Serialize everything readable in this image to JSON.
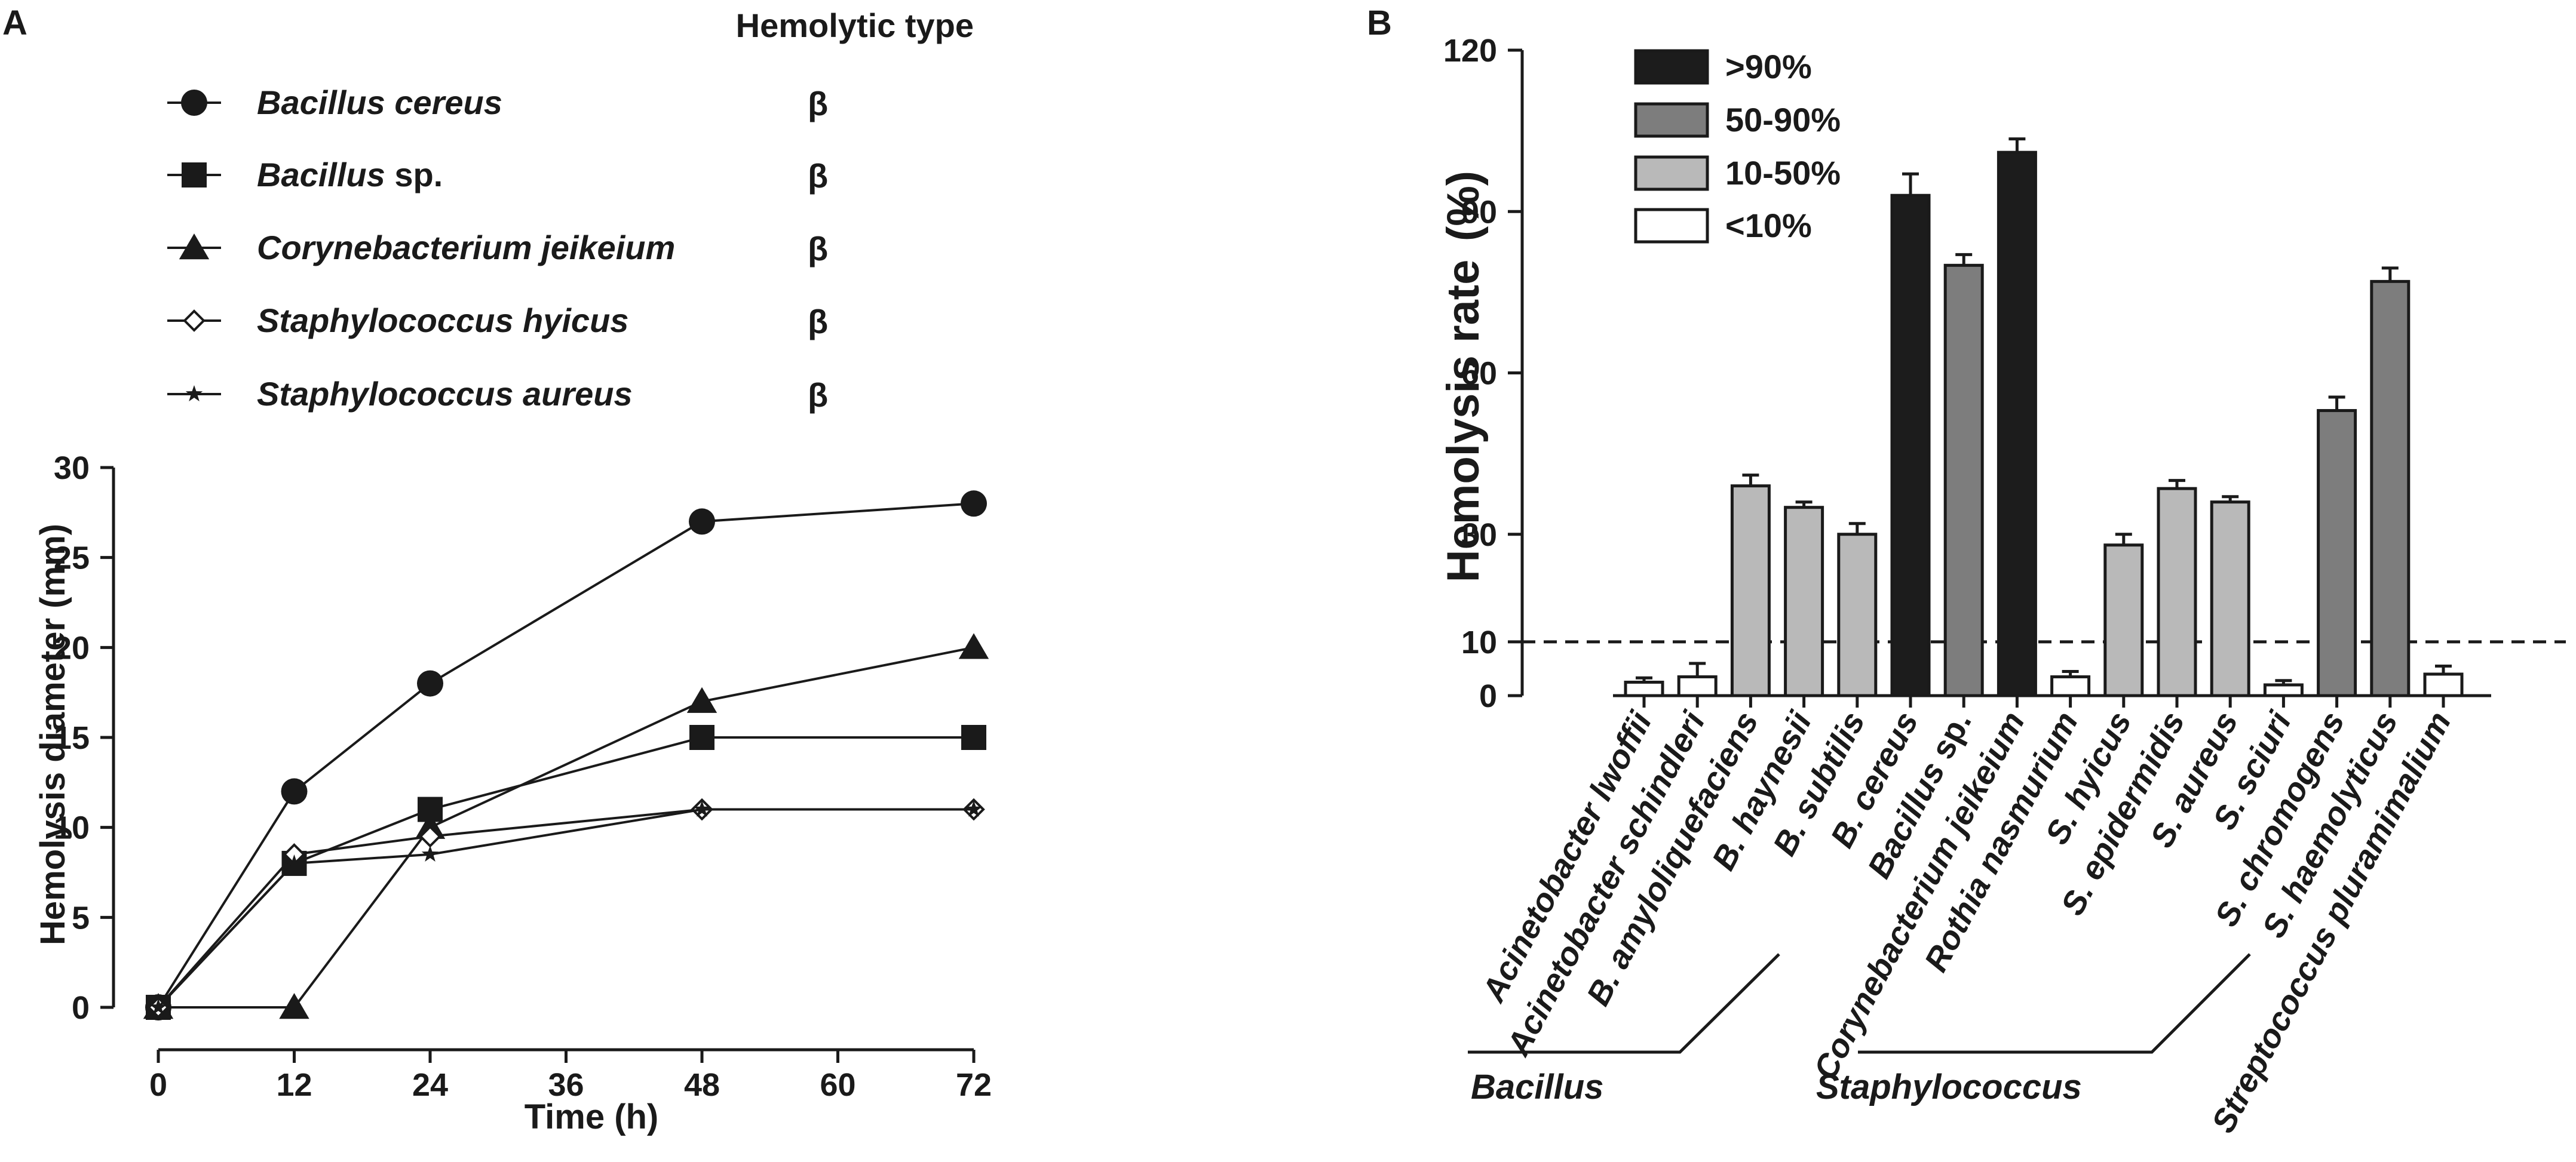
{
  "chart_data": [
    {
      "panel": "A",
      "type": "line",
      "title": "",
      "xlabel": "Time (h)",
      "ylabel": "Hemolysis diameter (mm)",
      "x": [
        0,
        12,
        24,
        48,
        72
      ],
      "xticks": [
        0,
        12,
        24,
        36,
        48,
        60,
        72
      ],
      "yticks": [
        0,
        5,
        10,
        15,
        20,
        25,
        30
      ],
      "xlim": [
        0,
        72
      ],
      "ylim": [
        0,
        30
      ],
      "legend_header": "Hemolytic type",
      "series": [
        {
          "name": "Bacillus cereus",
          "name_italic": "Bacillus cereus",
          "name_plain": "",
          "marker": "circle",
          "hemolytic_type": "β",
          "values": [
            0,
            12,
            18,
            27,
            28
          ]
        },
        {
          "name": "Bacillus sp.",
          "name_italic": "Bacillus",
          "name_plain": " sp.",
          "marker": "square",
          "hemolytic_type": "β",
          "values": [
            0,
            8,
            11,
            15,
            15
          ]
        },
        {
          "name": "Corynebacterium jeikeium",
          "name_italic": "Corynebacterium jeikeium",
          "name_plain": "",
          "marker": "triangle",
          "hemolytic_type": "β",
          "values": [
            0,
            0,
            10,
            17,
            20
          ]
        },
        {
          "name": "Staphylococcus hyicus",
          "name_italic": "Staphylococcus hyicus",
          "name_plain": "",
          "marker": "diamond",
          "hemolytic_type": "β",
          "values": [
            0,
            8.5,
            9.5,
            11,
            11
          ]
        },
        {
          "name": "Staphylococcus aureus",
          "name_italic": "Staphylococcus aureus",
          "name_plain": "",
          "marker": "star",
          "hemolytic_type": "β",
          "values": [
            0,
            8,
            8.5,
            11,
            11
          ]
        }
      ]
    },
    {
      "panel": "B",
      "type": "bar",
      "title": "",
      "xlabel": "",
      "ylabel": "Hemolysis rate",
      "ylabel_unit": "(%)",
      "ylim": [
        0,
        120
      ],
      "yticks": [
        0,
        10,
        30,
        60,
        90,
        120
      ],
      "threshold_line": 10,
      "categories": [
        {
          "italic": "Acinetobacter lwoffii",
          "plain": ""
        },
        {
          "italic": "Acinetobacter schindleri",
          "plain": ""
        },
        {
          "italic": "B. amyloliquefaciens",
          "plain": ""
        },
        {
          "italic": "B. haynesii",
          "plain": ""
        },
        {
          "italic": "B. subtilis",
          "plain": ""
        },
        {
          "italic": "B. cereus",
          "plain": ""
        },
        {
          "italic": "Bacillus",
          "plain": " sp."
        },
        {
          "italic": "Corynebacterium jeikeium",
          "plain": ""
        },
        {
          "italic": "Rothia nasmurium",
          "plain": ""
        },
        {
          "italic": "S. hyicus",
          "plain": ""
        },
        {
          "italic": "S. epidermidis",
          "plain": ""
        },
        {
          "italic": "S. aureus",
          "plain": ""
        },
        {
          "italic": "S. sciuri",
          "plain": ""
        },
        {
          "italic": "S. chromogens",
          "plain": ""
        },
        {
          "italic": "S. haemolyticus",
          "plain": ""
        },
        {
          "italic": "Streptococcus pluramimalium",
          "plain": ""
        }
      ],
      "values": [
        2.5,
        3.5,
        39,
        35,
        30,
        93,
        80,
        101,
        3.5,
        28,
        38.5,
        36,
        2,
        53,
        77,
        4
      ],
      "errors": [
        0.8,
        2.5,
        2,
        1,
        2,
        4,
        2,
        2.5,
        1,
        2,
        1.5,
        1,
        0.8,
        2.5,
        2.5,
        1.5
      ],
      "bin": [
        3,
        3,
        2,
        2,
        2,
        0,
        1,
        0,
        3,
        2,
        2,
        2,
        3,
        1,
        1,
        3
      ],
      "legend": [
        {
          "label": ">90%",
          "color": "#1c1c1c"
        },
        {
          "label": "50-90%",
          "color": "#7d7d7d"
        },
        {
          "label": "10-50%",
          "color": "#b9b9b9"
        },
        {
          "label": "<10%",
          "color": "#ffffff"
        }
      ],
      "groups": [
        {
          "label": "Bacillus",
          "from": 2,
          "to": 6
        },
        {
          "label": "Staphylococcus",
          "from": 9,
          "to": 14
        }
      ]
    }
  ]
}
